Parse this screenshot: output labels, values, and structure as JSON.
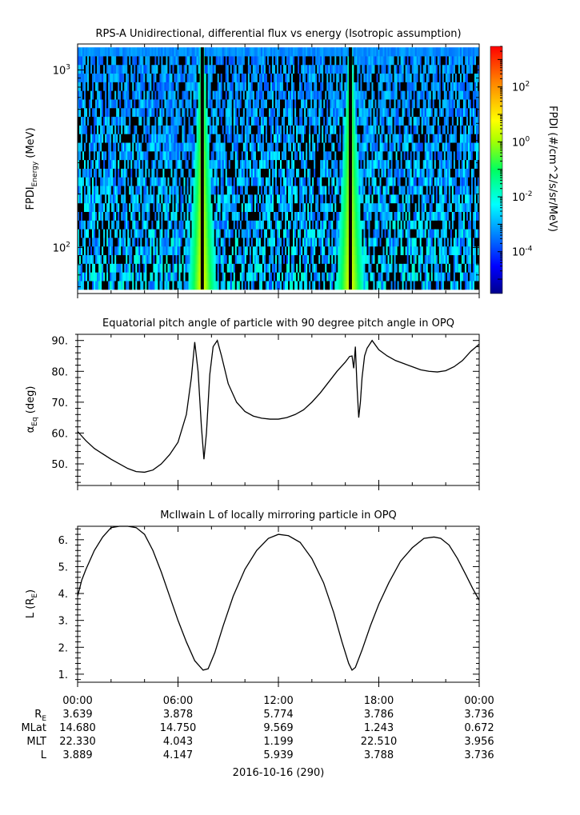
{
  "chart_data": [
    {
      "type": "heatmap",
      "title": "RPS-A Unidirectional, differential flux vs energy (Isotropic assumption)",
      "ylabel_main": "FPDI",
      "ylabel_sub": "Energy",
      "ylabel_unit": " (MeV)",
      "y_scale": "log",
      "ylim": [
        55,
        1400
      ],
      "y_ticks": [
        {
          "value": 100,
          "base": "10",
          "exp": "2"
        },
        {
          "value": 1000,
          "base": "10",
          "exp": "3"
        }
      ],
      "xlim_hours": [
        0,
        24
      ],
      "energy_channel_edges_mev": [
        58,
        1340
      ],
      "cusp_peaks_hours": [
        7.45,
        16.3
      ],
      "colorbar": {
        "label": "FPDI (#/cm^2/s/sr/MeV)",
        "scale": "log",
        "range": [
          3e-06,
          3000
        ],
        "ticks": [
          {
            "value": 0.0001,
            "base": "10",
            "exp": "-4"
          },
          {
            "value": 0.01,
            "base": "10",
            "exp": "-2"
          },
          {
            "value": 1,
            "base": "10",
            "exp": "0"
          },
          {
            "value": 100,
            "base": "10",
            "exp": "2"
          }
        ]
      }
    },
    {
      "type": "line",
      "title": "Equatorial pitch angle of particle with 90 degree pitch angle in OPQ",
      "ylabel_main": "α",
      "ylabel_sub": "Eq",
      "ylabel_unit": " (deg)",
      "ylim": [
        43,
        92
      ],
      "y_ticks": [
        50,
        60,
        70,
        80,
        90
      ],
      "y_tick_labels": [
        "50.",
        "60.",
        "70.",
        "80.",
        "90."
      ],
      "x_hours": [
        0,
        0.5,
        1,
        2,
        3,
        3.5,
        4,
        4.5,
        5,
        5.5,
        6,
        6.5,
        6.8,
        7.0,
        7.2,
        7.4,
        7.55,
        7.7,
        7.9,
        8.1,
        8.35,
        8.6,
        9,
        9.5,
        10,
        10.5,
        11,
        11.5,
        12,
        12.5,
        13,
        13.5,
        14,
        14.5,
        15,
        15.5,
        16.0,
        16.25,
        16.4,
        16.5,
        16.6,
        16.7,
        16.8,
        16.9,
        17.0,
        17.15,
        17.3,
        17.6,
        18,
        18.5,
        19,
        19.5,
        20,
        20.5,
        21,
        21.5,
        22,
        22.5,
        23,
        23.5,
        24
      ],
      "values": [
        60.5,
        57.5,
        55,
        51.5,
        48.5,
        47.5,
        47.3,
        48,
        50,
        53,
        57,
        66,
        78,
        89.5,
        80,
        62,
        51.5,
        60,
        79,
        88,
        90,
        85,
        76,
        70,
        67,
        65.5,
        64.8,
        64.5,
        64.5,
        65,
        66,
        67.5,
        70,
        73,
        76.5,
        80,
        83,
        84.8,
        85,
        81,
        88,
        75,
        65,
        70,
        78,
        85,
        87.5,
        90,
        87,
        85,
        83.5,
        82.5,
        81.5,
        80.5,
        80,
        79.8,
        80.2,
        81.5,
        83.5,
        86.5,
        88.8
      ]
    },
    {
      "type": "line",
      "title": "McIlwain L of locally mirroring particle in OPQ",
      "ylabel_main": "L (R",
      "ylabel_sub": "E",
      "ylabel_unit": ")",
      "ylim": [
        0.7,
        6.5
      ],
      "y_ticks": [
        1,
        2,
        3,
        4,
        5,
        6
      ],
      "y_tick_labels": [
        "1.",
        "2.",
        "3.",
        "4.",
        "5.",
        "6."
      ],
      "x_hours": [
        0,
        0.25,
        0.5,
        1,
        1.5,
        2,
        2.5,
        3,
        3.5,
        4,
        4.5,
        5,
        5.5,
        6,
        6.5,
        7,
        7.5,
        7.8,
        8.2,
        8.7,
        9.3,
        10,
        10.7,
        11.4,
        12,
        12.6,
        13.3,
        14,
        14.7,
        15.3,
        15.8,
        16.2,
        16.4,
        16.6,
        17,
        17.5,
        18,
        18.6,
        19.3,
        20,
        20.7,
        21.3,
        21.7,
        22.2,
        22.7,
        23.2,
        23.6,
        24
      ],
      "values": [
        3.9,
        4.5,
        4.9,
        5.6,
        6.1,
        6.45,
        6.55,
        6.5,
        6.45,
        6.2,
        5.6,
        4.8,
        3.9,
        3.0,
        2.2,
        1.5,
        1.15,
        1.2,
        1.8,
        2.8,
        3.9,
        4.9,
        5.6,
        6.05,
        6.2,
        6.15,
        5.9,
        5.3,
        4.4,
        3.3,
        2.2,
        1.4,
        1.15,
        1.25,
        1.9,
        2.8,
        3.6,
        4.4,
        5.2,
        5.7,
        6.05,
        6.1,
        6.05,
        5.8,
        5.3,
        4.7,
        4.2,
        3.75
      ]
    }
  ],
  "x_axis": {
    "tick_labels": [
      "00:00",
      "06:00",
      "12:00",
      "18:00",
      "00:00"
    ],
    "tick_hours": [
      0,
      6,
      12,
      18,
      24
    ],
    "date_label": "2016-10-16 (290)"
  },
  "ephemeris": {
    "rows": [
      {
        "label": "R",
        "label_sub": "E",
        "values": [
          "3.639",
          "3.878",
          "5.774",
          "3.786",
          "3.736"
        ]
      },
      {
        "label": "MLat",
        "label_sub": "",
        "values": [
          "14.680",
          "14.750",
          "9.569",
          "1.243",
          "0.672"
        ]
      },
      {
        "label": "MLT",
        "label_sub": "",
        "values": [
          "22.330",
          "4.043",
          "1.199",
          "22.510",
          "3.956"
        ]
      },
      {
        "label": "L",
        "label_sub": "",
        "values": [
          "3.889",
          "4.147",
          "5.939",
          "3.788",
          "3.736"
        ]
      }
    ]
  },
  "colors": {
    "axes": "#000000",
    "line": "#000000",
    "background": "#ffffff"
  }
}
